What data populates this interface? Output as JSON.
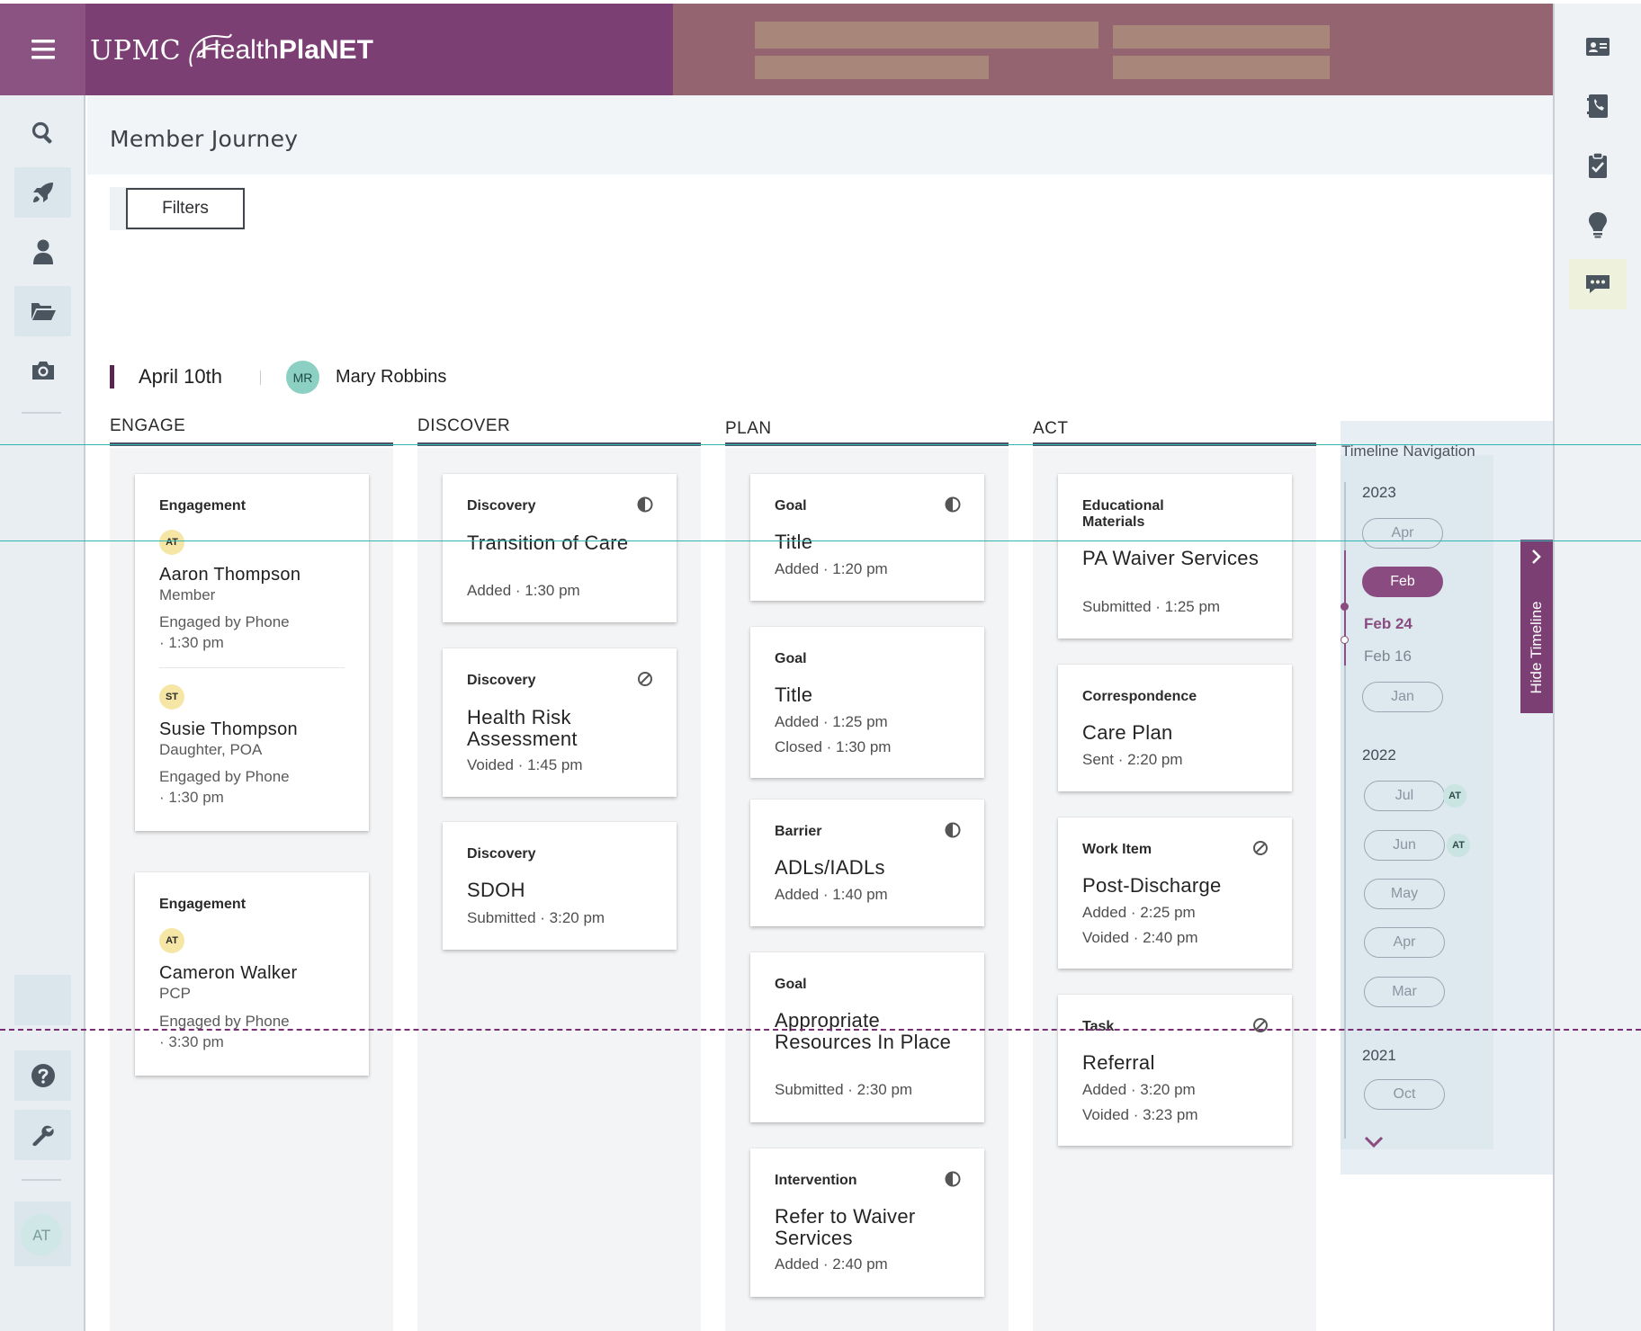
{
  "header": {
    "logo_upmc": "UPMC",
    "logo_health": "Health",
    "logo_planet": "PlaNET",
    "color": "#7b3f73"
  },
  "left_nav": {
    "items": [
      {
        "icon": "search-icon",
        "selected": false
      },
      {
        "icon": "rocket-icon",
        "selected": true
      },
      {
        "icon": "person-icon",
        "selected": false
      },
      {
        "icon": "folder-open-icon",
        "selected": true
      },
      {
        "icon": "camera-icon",
        "selected": false
      }
    ],
    "bottom_items": [
      {
        "icon": "help-icon"
      },
      {
        "icon": "wrench-icon"
      }
    ],
    "avatar": "AT"
  },
  "right_nav": {
    "items": [
      {
        "icon": "contact-card-icon",
        "selected": false
      },
      {
        "icon": "phone-book-icon",
        "selected": false
      },
      {
        "icon": "clipboard-check-icon",
        "selected": false
      },
      {
        "icon": "lightbulb-icon",
        "selected": false
      },
      {
        "icon": "chat-icon",
        "selected": true
      }
    ]
  },
  "page": {
    "title": "Member Journey",
    "filters_label": "Filters"
  },
  "journey": {
    "date": "April 10th",
    "member_initials": "MR",
    "member_name": "Mary Robbins"
  },
  "columns": {
    "engage": {
      "header": "ENGAGE",
      "cards": [
        {
          "type": "Engagement",
          "people": [
            {
              "initials": "AT",
              "name": "Aaron Thompson",
              "role": "Member",
              "meta1": "Engaged by Phone",
              "meta2": "· 1:30 pm"
            },
            {
              "initials": "ST",
              "name": "Susie Thompson",
              "role": "Daughter, POA",
              "meta1": "Engaged by Phone",
              "meta2": "· 1:30 pm"
            }
          ]
        },
        {
          "type": "Engagement",
          "people": [
            {
              "initials": "AT",
              "name": "Cameron Walker",
              "role": "PCP",
              "meta1": "Engaged by Phone",
              "meta2": "· 3:30 pm"
            }
          ]
        }
      ]
    },
    "discover": {
      "header": "DISCOVER",
      "cards": [
        {
          "type": "Discovery",
          "title": "Transition of Care",
          "meta": [
            "Added · 1:30 pm"
          ],
          "icon": "half-circle-icon"
        },
        {
          "type": "Discovery",
          "title": "Health Risk Assessment",
          "meta": [
            "Voided · 1:45 pm"
          ],
          "icon": "voided-icon"
        },
        {
          "type": "Discovery",
          "title": "SDOH",
          "meta": [
            "Submitted · 3:20 pm"
          ],
          "icon": ""
        }
      ]
    },
    "plan": {
      "header": "PLAN",
      "cards": [
        {
          "type": "Goal",
          "title": "Title",
          "meta": [
            "Added · 1:20 pm"
          ],
          "icon": "half-circle-icon"
        },
        {
          "type": "Goal",
          "title": "Title",
          "meta": [
            "Added · 1:25 pm",
            "Closed · 1:30 pm"
          ],
          "icon": ""
        },
        {
          "type": "Barrier",
          "title": "ADLs/IADLs",
          "meta": [
            "Added · 1:40 pm"
          ],
          "icon": "half-circle-icon"
        },
        {
          "type": "Goal",
          "title": "Appropriate Resources In Place",
          "meta": [
            "Submitted · 2:30 pm"
          ],
          "icon": ""
        },
        {
          "type": "Intervention",
          "title": "Refer to Waiver Services",
          "meta": [
            "Added · 2:40 pm"
          ],
          "icon": "half-circle-icon"
        }
      ]
    },
    "act": {
      "header": "ACT",
      "cards": [
        {
          "type": "Educational Materials",
          "title": "PA Waiver Services",
          "meta": [
            "Submitted · 1:25 pm"
          ],
          "icon": ""
        },
        {
          "type": "Correspondence",
          "title": "Care Plan",
          "meta": [
            "Sent · 2:20 pm"
          ],
          "icon": ""
        },
        {
          "type": "Work Item",
          "title": "Post-Discharge",
          "meta": [
            "Added · 2:25 pm",
            "Voided · 2:40 pm"
          ],
          "icon": "voided-icon"
        },
        {
          "type": "Task",
          "title": "Referral",
          "meta": [
            "Added · 3:20 pm",
            "Voided · 3:23 pm"
          ],
          "icon": "voided-icon"
        }
      ]
    }
  },
  "timeline": {
    "title": "Timeline Navigation",
    "hide_label": "Hide Timeline",
    "years": [
      {
        "year": "2023",
        "months": [
          "Apr",
          "Feb",
          "Jan"
        ],
        "selected": "Feb",
        "sub_items": [
          "Feb 24",
          "Feb 16"
        ]
      },
      {
        "year": "2022",
        "months": [
          "Jul",
          "Jun",
          "May",
          "Apr",
          "Mar"
        ],
        "badges": {
          "Jul": "AT",
          "Jun": "AT"
        }
      },
      {
        "year": "2021",
        "months": [
          "Oct"
        ]
      }
    ],
    "accent": "#8a4c80"
  }
}
